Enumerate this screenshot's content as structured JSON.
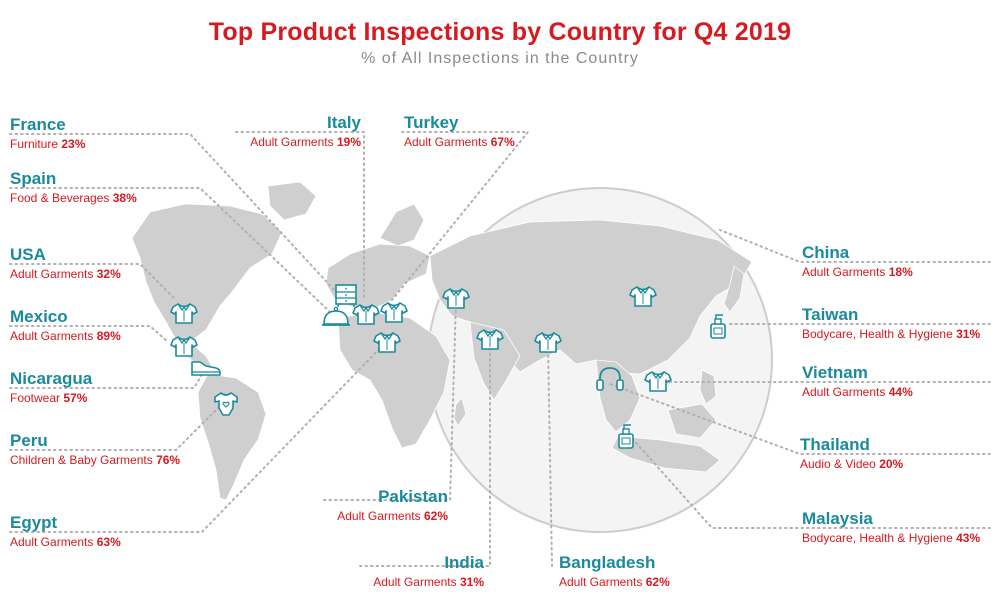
{
  "title": "Top Product Inspections by Country for Q4 2019",
  "subtitle": "% of All Inspections in the Country",
  "colors": {
    "title": "#d71920",
    "country": "#1b8a9c",
    "category": "#d71920",
    "land": "#cfcfcf",
    "icon": "#1b8a9c",
    "leader": "#b0b0b0"
  },
  "countries": [
    {
      "country": "France",
      "category": "Furniture",
      "percent": "23%",
      "icon": "furniture-icon"
    },
    {
      "country": "Spain",
      "category": "Food & Beverages",
      "percent": "38%",
      "icon": "food-cloche-icon"
    },
    {
      "country": "USA",
      "category": "Adult Garments",
      "percent": "32%",
      "icon": "shirt-icon"
    },
    {
      "country": "Mexico",
      "category": "Adult Garments",
      "percent": "89%",
      "icon": "shirt-icon"
    },
    {
      "country": "Nicaragua",
      "category": "Footwear",
      "percent": "57%",
      "icon": "sneaker-icon"
    },
    {
      "country": "Peru",
      "category": "Children & Baby Garments",
      "percent": "76%",
      "icon": "baby-onesie-icon"
    },
    {
      "country": "Egypt",
      "category": "Adult Garments",
      "percent": "63%",
      "icon": "shirt-icon"
    },
    {
      "country": "Italy",
      "category": "Adult Garments",
      "percent": "19%",
      "icon": "shirt-icon"
    },
    {
      "country": "Turkey",
      "category": "Adult Garments",
      "percent": "67%",
      "icon": "shirt-icon"
    },
    {
      "country": "Pakistan",
      "category": "Adult Garments",
      "percent": "62%",
      "icon": "shirt-icon"
    },
    {
      "country": "India",
      "category": "Adult Garments",
      "percent": "31%",
      "icon": "shirt-icon"
    },
    {
      "country": "Bangladesh",
      "category": "Adult Garments",
      "percent": "62%",
      "icon": "shirt-icon"
    },
    {
      "country": "China",
      "category": "Adult Garments",
      "percent": "18%",
      "icon": "shirt-icon"
    },
    {
      "country": "Taiwan",
      "category": "Bodycare, Health & Hygiene",
      "percent": "31%",
      "icon": "pump-bottle-icon"
    },
    {
      "country": "Vietnam",
      "category": "Adult Garments",
      "percent": "44%",
      "icon": "shirt-icon"
    },
    {
      "country": "Thailand",
      "category": "Audio & Video",
      "percent": "20%",
      "icon": "headphones-icon"
    },
    {
      "country": "Malaysia",
      "category": "Bodycare, Health & Hygiene",
      "percent": "43%",
      "icon": "pump-bottle-icon"
    }
  ]
}
